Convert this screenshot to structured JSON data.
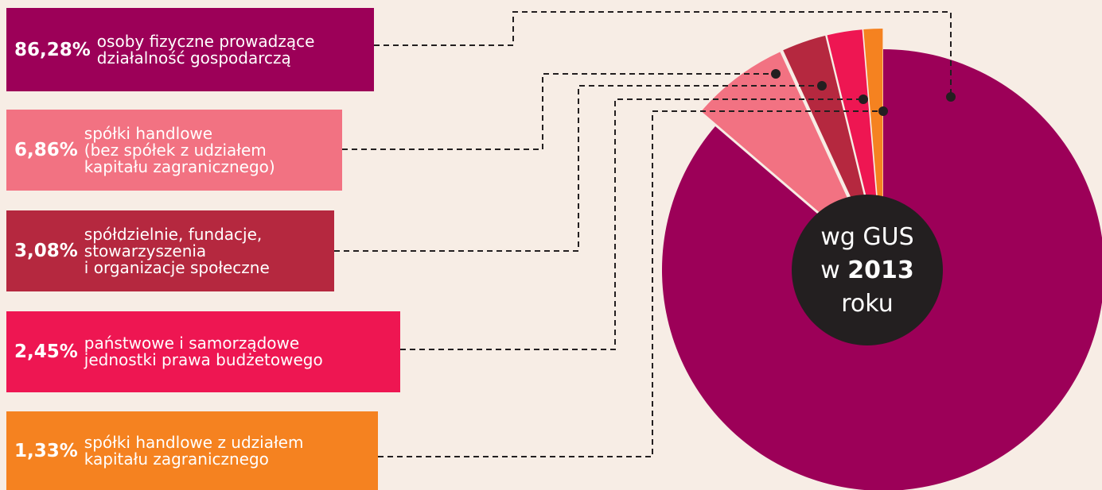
{
  "chart_data": {
    "type": "pie",
    "categories": [
      "osoby fizyczne prowadzące\ndziałalność gospodarczą",
      "spółki handlowe\n(bez spółek z udziałem\nkapitału zagranicznego)",
      "spółdzielnie, fundacje,\nstowarzyszenia\ni organizacje społeczne",
      "państwowe i samorządowe\njednostki prawa budżetowego",
      "spółki handlowe z udziałem\nkapitału zagranicznego"
    ],
    "values": [
      86.28,
      6.86,
      3.08,
      2.45,
      1.33
    ],
    "value_labels": [
      "86,28%",
      "6,86%",
      "3,08%",
      "2,45%",
      "1,33%"
    ],
    "colors": [
      "#9c0058",
      "#f27282",
      "#b5283f",
      "#ee1652",
      "#f58220"
    ],
    "center_text": {
      "line1": "wg GUS",
      "line2": "w",
      "year": "2013",
      "line3": "roku"
    }
  }
}
